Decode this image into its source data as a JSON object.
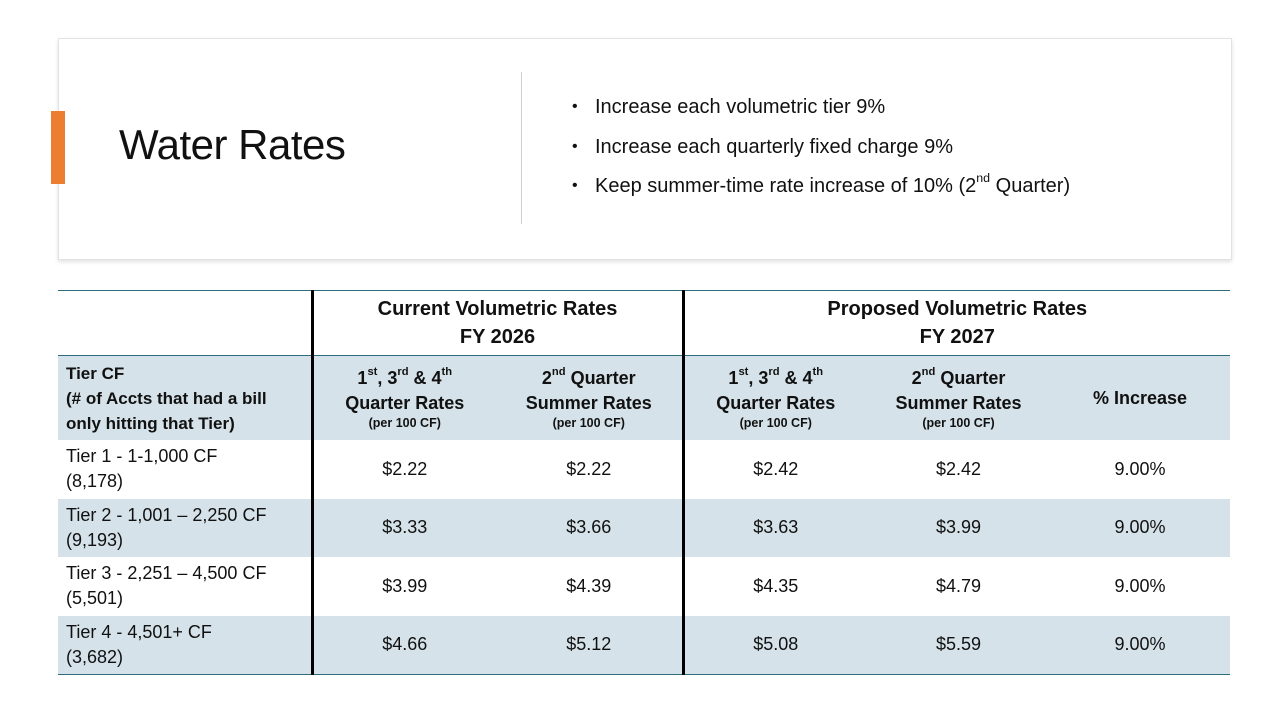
{
  "slide": {
    "title": "Water Rates",
    "accent_color": "#ed7d31",
    "bullets": [
      {
        "text": "Increase each volumetric tier 9%"
      },
      {
        "text": "Increase each quarterly fixed charge 9%"
      },
      {
        "text_before": "Keep summer-time rate increase of 10% (2",
        "sup": "nd",
        "text_after": " Quarter)"
      }
    ]
  },
  "table": {
    "groups": {
      "current": {
        "line1": "Current Volumetric Rates",
        "line2": "FY 2026"
      },
      "proposed": {
        "line1": "Proposed Volumetric Rates",
        "line2": "FY 2027"
      }
    },
    "tier_header": {
      "line1": "Tier CF",
      "line2": "(# of Accts that had a bill",
      "line3": "only hitting that Tier)"
    },
    "qtr_rates": {
      "n1": "1",
      "s1": "st",
      "n2": ", 3",
      "s2": "rd",
      "n3": " & 4",
      "s3": "th",
      "line2": "Quarter Rates",
      "unit": "(per 100 CF)"
    },
    "summer_rates": {
      "n1": "2",
      "s1": "nd",
      "rest": " Quarter",
      "line2": "Summer Rates",
      "unit": "(per 100 CF)"
    },
    "pct_header": "% Increase",
    "rows": [
      {
        "tier": "Tier 1 - 1-1,000 CF",
        "accts": "(8,178)",
        "cur_q": "$2.22",
        "cur_s": "$2.22",
        "prop_q": "$2.42",
        "prop_s": "$2.42",
        "pct": "9.00%"
      },
      {
        "tier": "Tier 2 - 1,001 – 2,250 CF",
        "accts": "(9,193)",
        "cur_q": "$3.33",
        "cur_s": "$3.66",
        "prop_q": "$3.63",
        "prop_s": "$3.99",
        "pct": "9.00%"
      },
      {
        "tier": "Tier 3 - 2,251 – 4,500 CF",
        "accts": "(5,501)",
        "cur_q": "$3.99",
        "cur_s": "$4.39",
        "prop_q": "$4.35",
        "prop_s": "$4.79",
        "pct": "9.00%"
      },
      {
        "tier": "Tier 4 - 4,501+ CF",
        "accts": "(3,682)",
        "cur_q": "$4.66",
        "cur_s": "$5.12",
        "prop_q": "$5.08",
        "prop_s": "$5.59",
        "pct": "9.00%"
      }
    ],
    "colors": {
      "band": "#d5e2e9",
      "rule": "#2d6e7e"
    }
  }
}
